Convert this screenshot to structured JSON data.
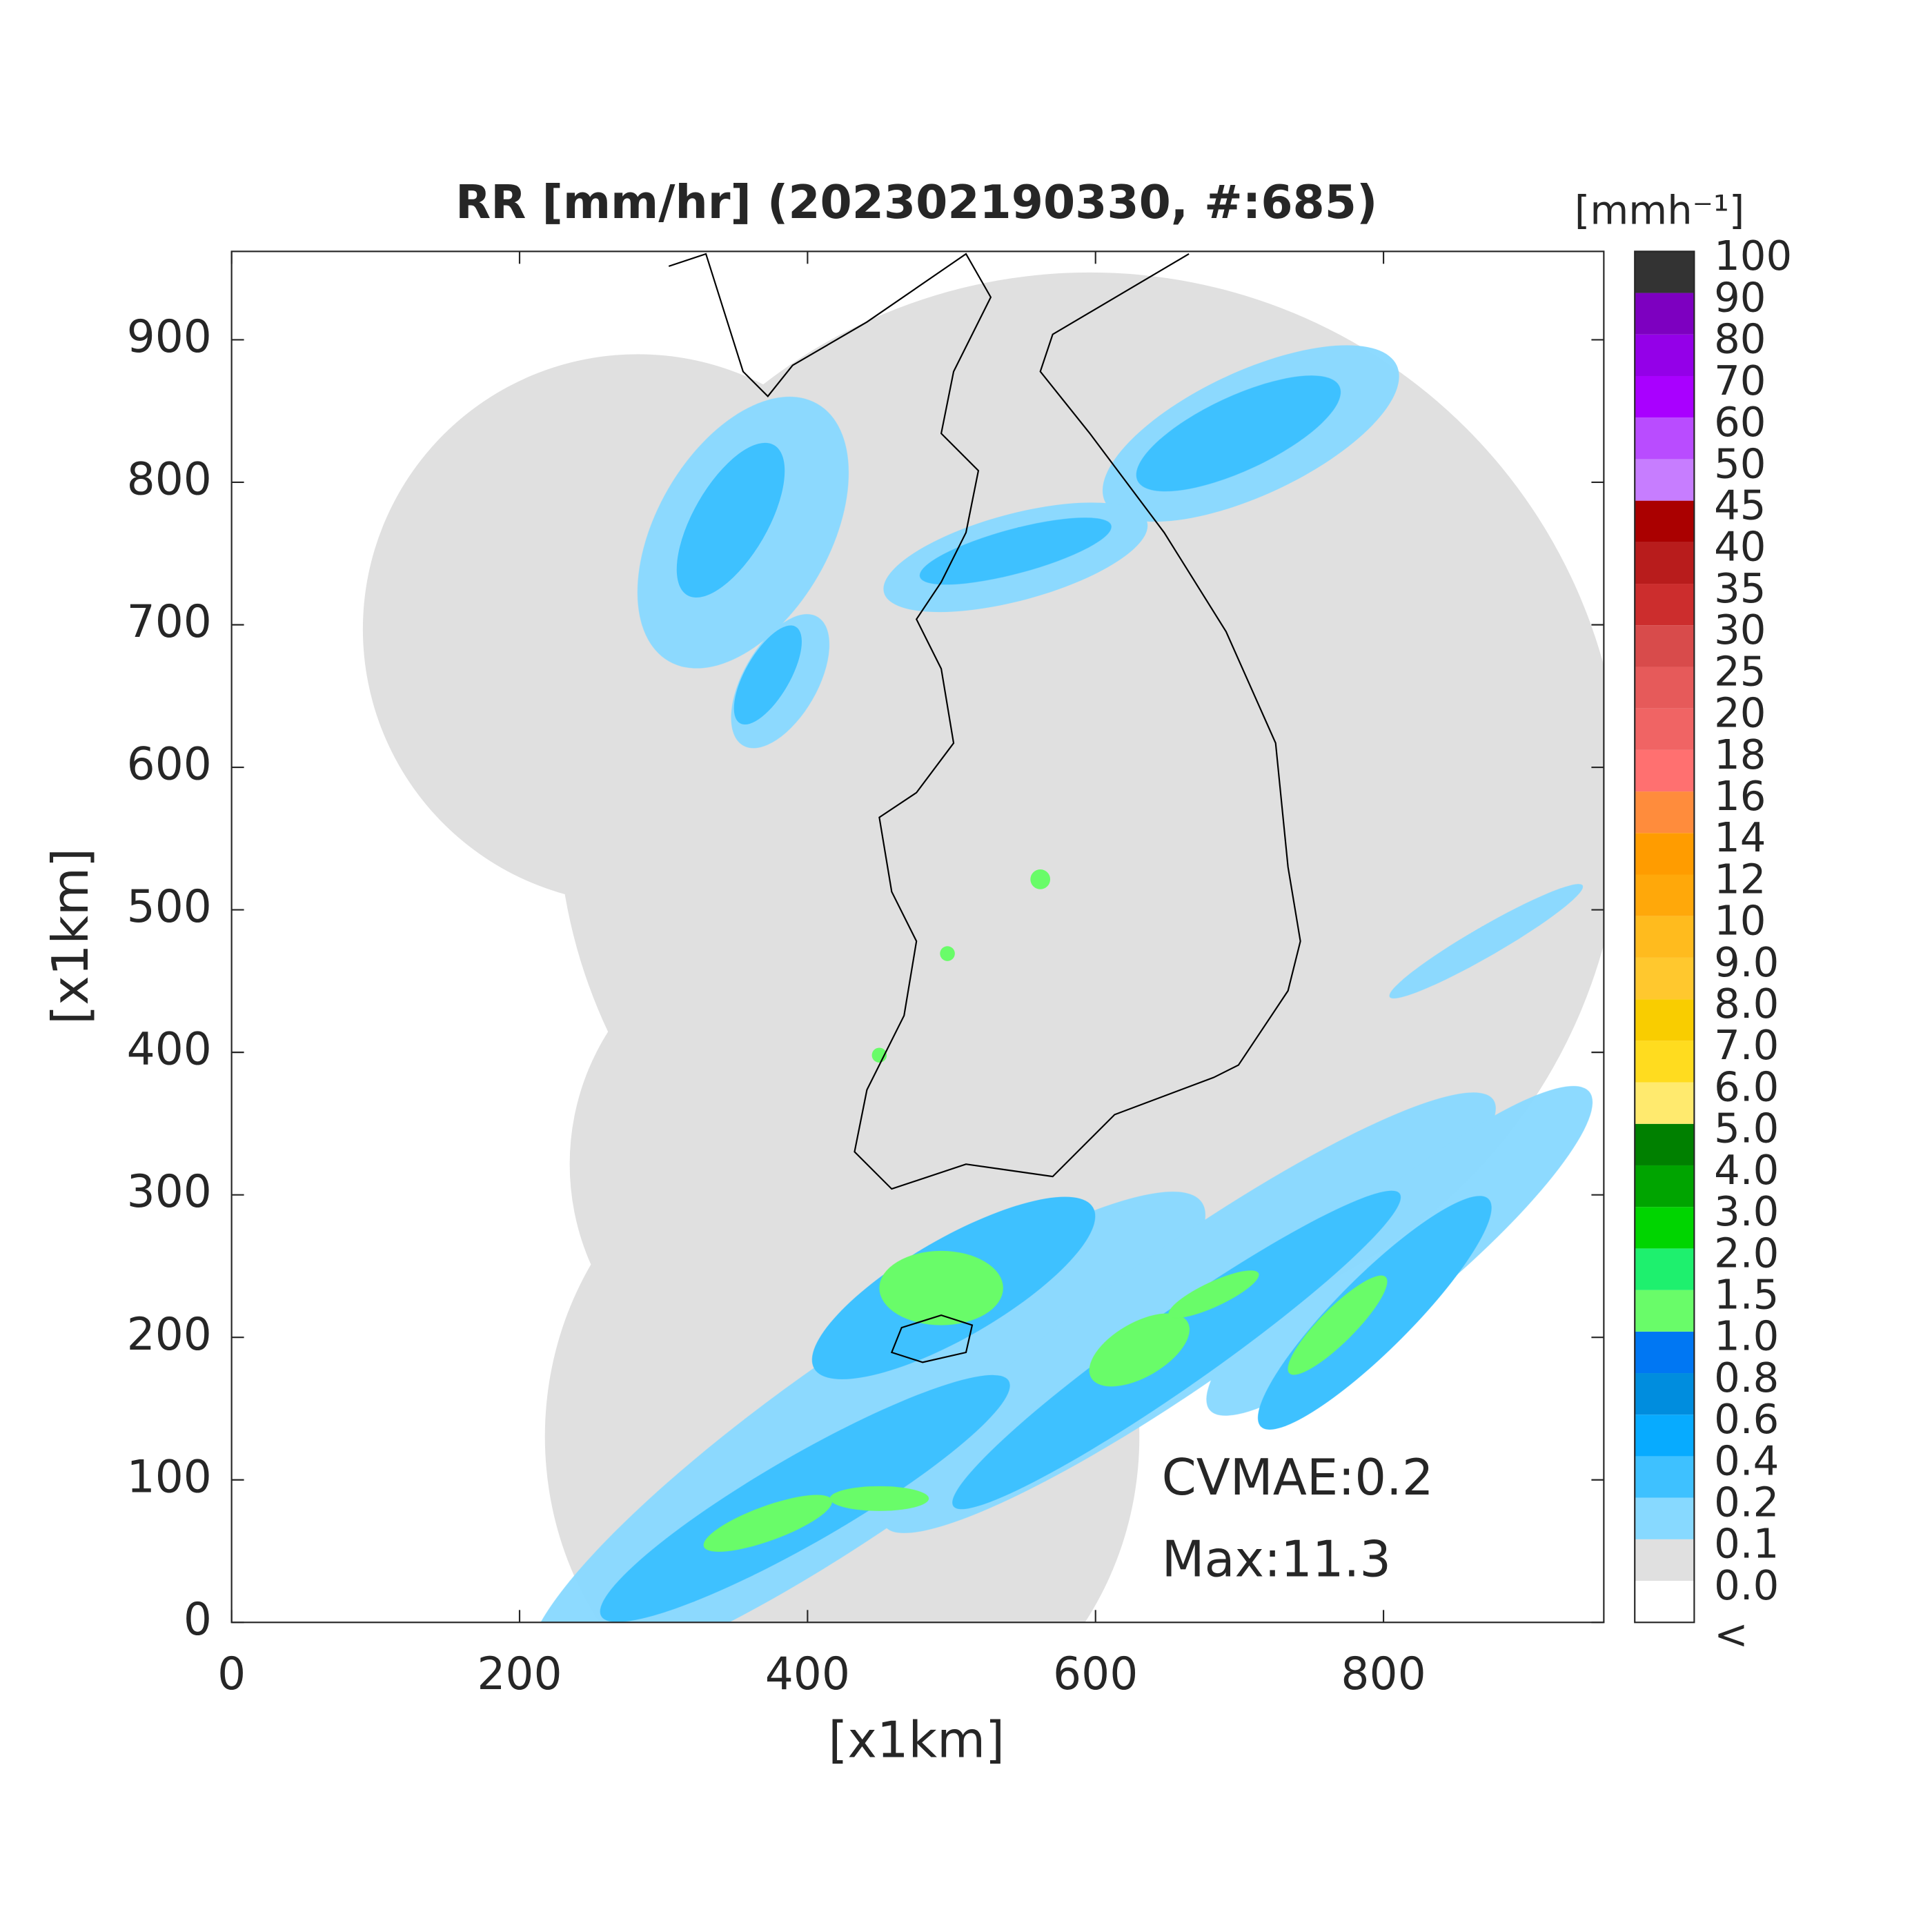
{
  "chart_data": {
    "type": "map",
    "title": "RR [mm/hr] (202302190330, #:685)",
    "xlabel": "[x1km]",
    "ylabel": "[x1km]",
    "xlim": [
      0,
      953
    ],
    "ylim": [
      0,
      962
    ],
    "xticks": [
      0,
      200,
      400,
      600,
      800
    ],
    "yticks": [
      0,
      100,
      200,
      300,
      400,
      500,
      600,
      700,
      800,
      900
    ],
    "annotations": [
      "CVMAE:0.2",
      "Max:11.3"
    ],
    "colorbar": {
      "title": "[mmh⁻¹]",
      "labels": [
        "<",
        "0.0",
        "0.1",
        "0.2",
        "0.4",
        "0.6",
        "0.8",
        "1.0",
        "1.5",
        "2.0",
        "3.0",
        "4.0",
        "5.0",
        "6.0",
        "7.0",
        "8.0",
        "9.0",
        "10",
        "12",
        "14",
        "16",
        "18",
        "20",
        "25",
        "30",
        "35",
        "40",
        "45",
        "50",
        "60",
        "70",
        "80",
        "90",
        "100"
      ],
      "colors": [
        "#ffffff",
        "#e0e0e0",
        "#87d9ff",
        "#3ec1ff",
        "#07abff",
        "#008dde",
        "#0077f3",
        "#69fc69",
        "#1ef06e",
        "#00d500",
        "#00a400",
        "#008000",
        "#ffea6e",
        "#ffdc1f",
        "#f9cd00",
        "#ffc82e",
        "#ffbb1e",
        "#ffa80a",
        "#ff9c00",
        "#ff8c3c",
        "#ff7070",
        "#f06464",
        "#e65a5a",
        "#d84b4b",
        "#cc2d2d",
        "#b81c1c",
        "#aa0000",
        "#c77dff",
        "#b94cff",
        "#a900ff",
        "#9400e8",
        "#7d00c0",
        "#333333"
      ]
    }
  }
}
